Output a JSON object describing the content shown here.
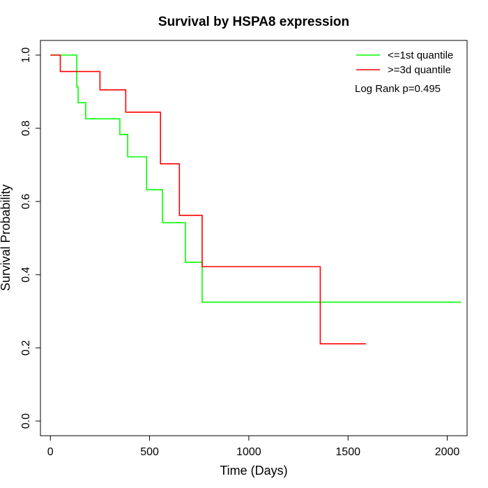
{
  "chart_data": {
    "type": "line",
    "title": "Survival by HSPA8 expression",
    "xlabel": "Time (Days)",
    "ylabel": "Survival Probability",
    "xlim": [
      -50,
      2100
    ],
    "ylim": [
      -0.04,
      1.04
    ],
    "x_ticks": [
      0,
      500,
      1000,
      1500,
      2000
    ],
    "y_ticks": [
      0.0,
      0.2,
      0.4,
      0.6,
      0.8,
      1.0
    ],
    "x_tick_labels": [
      "0",
      "500",
      "1000",
      "1500",
      "2000"
    ],
    "y_tick_labels": [
      "0.0",
      "0.2",
      "0.4",
      "0.6",
      "0.8",
      "1.0"
    ],
    "grid": false,
    "legend_position": "top-right",
    "annotation": "Log Rank p=0.495",
    "series": [
      {
        "name": "<=1st quantile",
        "color": "#00ff00",
        "step": true,
        "x": [
          0,
          133,
          140,
          178,
          350,
          390,
          485,
          565,
          680,
          765,
          2070
        ],
        "y": [
          1.0,
          0.913,
          0.87,
          0.826,
          0.783,
          0.722,
          0.632,
          0.542,
          0.434,
          0.325,
          0.325
        ]
      },
      {
        "name": ">=3d quantile",
        "color": "#ff0000",
        "step": true,
        "x": [
          0,
          50,
          250,
          380,
          555,
          650,
          765,
          1360,
          1590
        ],
        "y": [
          1.0,
          0.955,
          0.905,
          0.844,
          0.703,
          0.562,
          0.422,
          0.211,
          0.211
        ]
      }
    ]
  }
}
